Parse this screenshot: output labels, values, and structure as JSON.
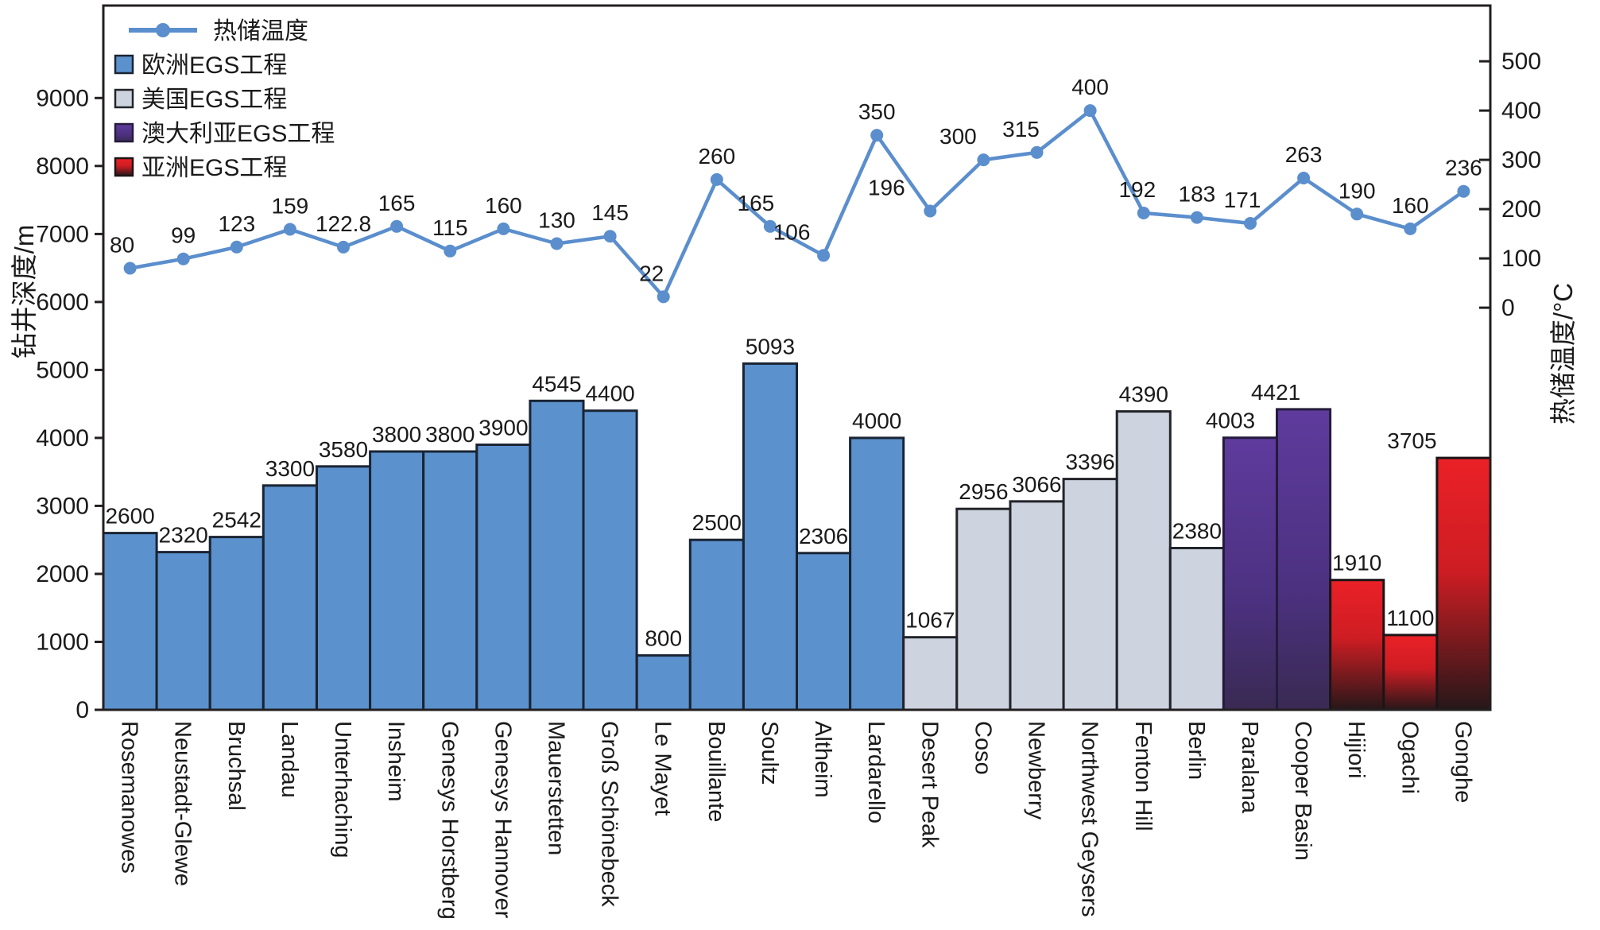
{
  "chart_data": {
    "type": "bar+line",
    "title": "",
    "categories": [
      "Rosemanowes",
      "Neustadt-Glewe",
      "Bruchsal",
      "Landau",
      "Unterhaching",
      "Insheim",
      "Genesys Horstberg",
      "Genesys Hannover",
      "Mauerstetten",
      "Groß Schönebeck",
      "Le Mayet",
      "Bouillante",
      "Soultz",
      "Altheim",
      "Lardarello",
      "Desert Peak",
      "Coso",
      "Newberry",
      "Northwest Geysers",
      "Fenton Hill",
      "Berlin",
      "Paralana",
      "Cooper Basin",
      "Hijiori",
      "Ogachi",
      "Gonghe"
    ],
    "bars": {
      "name": "钻井深度",
      "unit": "m",
      "values": [
        2600,
        2320,
        2542,
        3300,
        3580,
        3800,
        3800,
        3900,
        4545,
        4400,
        800,
        2500,
        5093,
        2306,
        4000,
        1067,
        2956,
        3066,
        3396,
        4390,
        2380,
        4003,
        4421,
        1910,
        1100,
        3705
      ],
      "label_dx": [
        0,
        0,
        0,
        0,
        0,
        0,
        0,
        0,
        0,
        0,
        0,
        0,
        0,
        0,
        0,
        0,
        0,
        0,
        0,
        0,
        0,
        -25,
        -35,
        0,
        0,
        -65
      ],
      "groups": [
        {
          "label": "欧洲EGS工程",
          "from": 0,
          "to": 14,
          "stops": [
            {
              "offset": "0%",
              "color": "#5b91cd"
            },
            {
              "offset": "100%",
              "color": "#5b91cd"
            }
          ],
          "stroke": "#1a2433"
        },
        {
          "label": "美国EGS工程",
          "from": 15,
          "to": 20,
          "stops": [
            {
              "offset": "0%",
              "color": "#cdd3df"
            },
            {
              "offset": "100%",
              "color": "#cdd3df"
            }
          ],
          "stroke": "#22242a"
        },
        {
          "label": "澳大利亚EGS工程",
          "from": 21,
          "to": 22,
          "stops": [
            {
              "offset": "0%",
              "color": "#5e3b9d"
            },
            {
              "offset": "60%",
              "color": "#4c3180"
            },
            {
              "offset": "100%",
              "color": "#392a52"
            }
          ],
          "stroke": "#241b3c"
        },
        {
          "label": "亚洲EGS工程",
          "from": 23,
          "to": 25,
          "stops": [
            {
              "offset": "0%",
              "color": "#ea2127"
            },
            {
              "offset": "45%",
              "color": "#cd1d23"
            },
            {
              "offset": "100%",
              "color": "#261719"
            }
          ],
          "stroke": "#1c1416"
        }
      ]
    },
    "line": {
      "label": "热储温度",
      "unit": "°C",
      "color": "#5b8ecd",
      "values": [
        80,
        99,
        123,
        159,
        122.8,
        165,
        115,
        160,
        130,
        145,
        22,
        260,
        165,
        106,
        350,
        196,
        300,
        315,
        400,
        192,
        183,
        171,
        263,
        190,
        160,
        236
      ],
      "label_dx": [
        -10,
        0,
        0,
        0,
        0,
        0,
        0,
        0,
        0,
        0,
        -15,
        0,
        -18,
        -40,
        0,
        -55,
        -32,
        -20,
        0,
        -8,
        0,
        -10,
        0,
        0,
        0,
        0
      ]
    },
    "left_axis": {
      "title": "钻井深度/m",
      "ticks": [
        0,
        1000,
        2000,
        3000,
        4000,
        5000,
        6000,
        7000,
        8000,
        9000
      ],
      "ylim": [
        0,
        10360
      ]
    },
    "right_axis": {
      "title": "热储温度/°C",
      "ticks": [
        0,
        100,
        200,
        300,
        400,
        500
      ],
      "ylim": [
        -816,
        613
      ]
    },
    "legend": [
      {
        "type": "line",
        "label": "热储温度"
      },
      {
        "type": "swatch",
        "group": 0,
        "label": "欧洲EGS工程"
      },
      {
        "type": "swatch",
        "group": 1,
        "label": "美国EGS工程"
      },
      {
        "type": "swatch",
        "group": 2,
        "label": "澳大利亚EGS工程"
      },
      {
        "type": "swatch",
        "group": 3,
        "label": "亚洲EGS工程"
      }
    ],
    "axis_color": "#231f20",
    "grid": false,
    "legend_position": "top-left-inside"
  }
}
